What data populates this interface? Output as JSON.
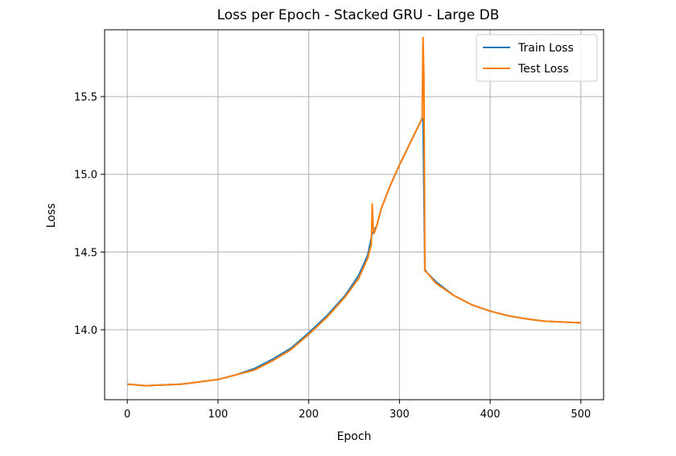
{
  "chart_data": {
    "type": "line",
    "title": "Loss per Epoch - Stacked GRU - Large DB",
    "xlabel": "Epoch",
    "ylabel": "Loss",
    "xlim": [
      -25,
      525
    ],
    "ylim": [
      13.55,
      15.93
    ],
    "xticks": [
      0,
      100,
      200,
      300,
      400,
      500
    ],
    "yticks": [
      14.0,
      14.5,
      15.0,
      15.5
    ],
    "xtick_labels": [
      "0",
      "100",
      "200",
      "300",
      "400",
      "500"
    ],
    "ytick_labels": [
      "14.0",
      "14.5",
      "15.0",
      "15.5"
    ],
    "grid": true,
    "legend_position": "top-right",
    "series": [
      {
        "name": "Train Loss",
        "color": "#1f77b4",
        "x": [
          0,
          20,
          40,
          60,
          80,
          100,
          120,
          140,
          160,
          180,
          200,
          220,
          240,
          255,
          265,
          270,
          272,
          275,
          280,
          290,
          300,
          310,
          320,
          325,
          326,
          328,
          330,
          340,
          360,
          380,
          400,
          420,
          440,
          460,
          480,
          500
        ],
        "y": [
          13.65,
          13.64,
          13.645,
          13.65,
          13.665,
          13.68,
          13.71,
          13.75,
          13.81,
          13.88,
          13.98,
          14.09,
          14.22,
          14.35,
          14.48,
          14.62,
          14.64,
          14.67,
          14.78,
          14.93,
          15.06,
          15.18,
          15.3,
          15.36,
          15.36,
          14.39,
          14.37,
          14.31,
          14.22,
          14.16,
          14.12,
          14.09,
          14.07,
          14.055,
          14.05,
          14.045
        ]
      },
      {
        "name": "Test Loss",
        "color": "#ff7f0e",
        "x": [
          0,
          20,
          40,
          60,
          80,
          100,
          120,
          140,
          160,
          180,
          200,
          220,
          240,
          255,
          265,
          269,
          270,
          271,
          272,
          275,
          280,
          290,
          300,
          310,
          320,
          325,
          326,
          327,
          328,
          330,
          340,
          360,
          380,
          400,
          420,
          440,
          460,
          480,
          500
        ],
        "y": [
          13.65,
          13.64,
          13.645,
          13.65,
          13.665,
          13.68,
          13.71,
          13.74,
          13.8,
          13.87,
          13.97,
          14.08,
          14.21,
          14.33,
          14.46,
          14.55,
          14.81,
          14.66,
          14.62,
          14.67,
          14.78,
          14.93,
          15.06,
          15.18,
          15.3,
          15.36,
          15.88,
          15.62,
          14.38,
          14.37,
          14.3,
          14.22,
          14.16,
          14.12,
          14.09,
          14.07,
          14.055,
          14.05,
          14.045
        ]
      }
    ]
  }
}
